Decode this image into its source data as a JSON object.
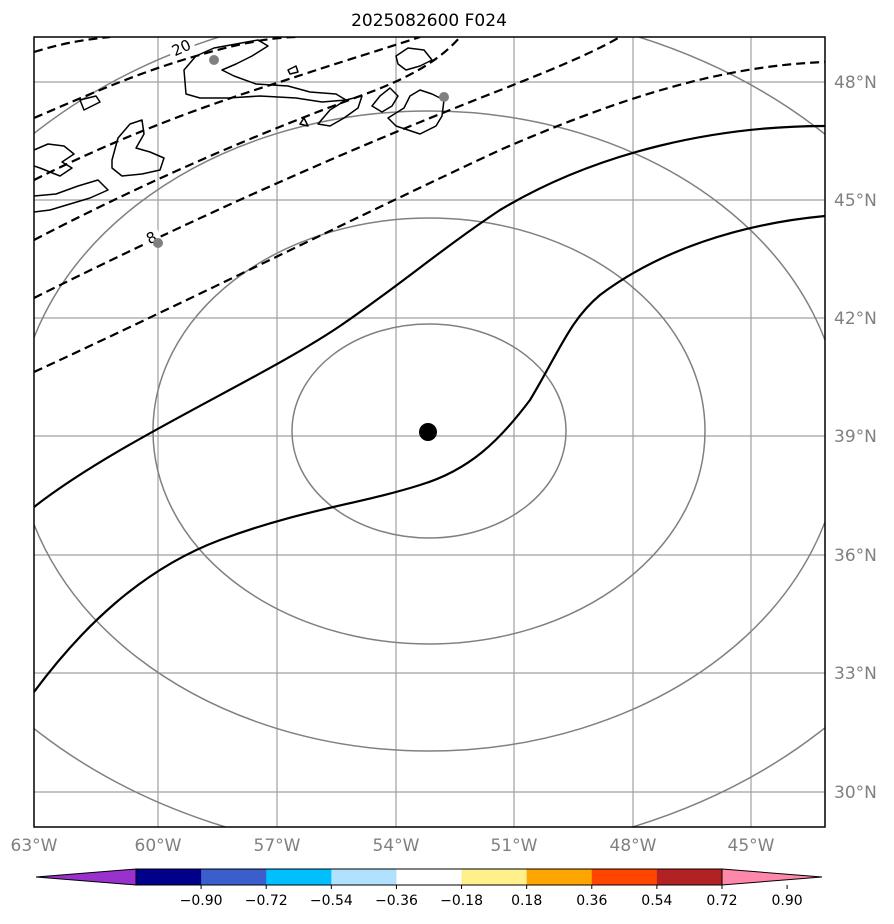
{
  "title": "2025082600 F024",
  "map": {
    "projection": "azimuthal equidistant",
    "lon_range": [
      -63,
      -43
    ],
    "lat_range": [
      29,
      49
    ],
    "center_point": {
      "lon": -53,
      "lat": 39
    },
    "lat_labels": [
      "48°N",
      "45°N",
      "42°N",
      "39°N",
      "36°N",
      "33°N",
      "30°N"
    ],
    "lon_labels": [
      "63°W",
      "60°W",
      "57°W",
      "54°W",
      "51°W",
      "48°W",
      "45°W"
    ],
    "contour_labels": [
      "20",
      "8"
    ],
    "range_ring_color": "#808080",
    "grid_color": "#a0a0a0"
  },
  "colorbar": {
    "extend": "both",
    "colors": [
      "#9932cc",
      "#00008b",
      "#3a5fcd",
      "#00bfff",
      "#b0e2ff",
      "#ffffff",
      "#fff08c",
      "#ffa500",
      "#ff4500",
      "#b22222",
      "#ff88aa"
    ],
    "tick_labels": [
      "−0.90",
      "−0.72",
      "−0.54",
      "−0.36",
      "−0.18",
      "0.18",
      "0.36",
      "0.54",
      "0.72",
      "0.90"
    ]
  }
}
